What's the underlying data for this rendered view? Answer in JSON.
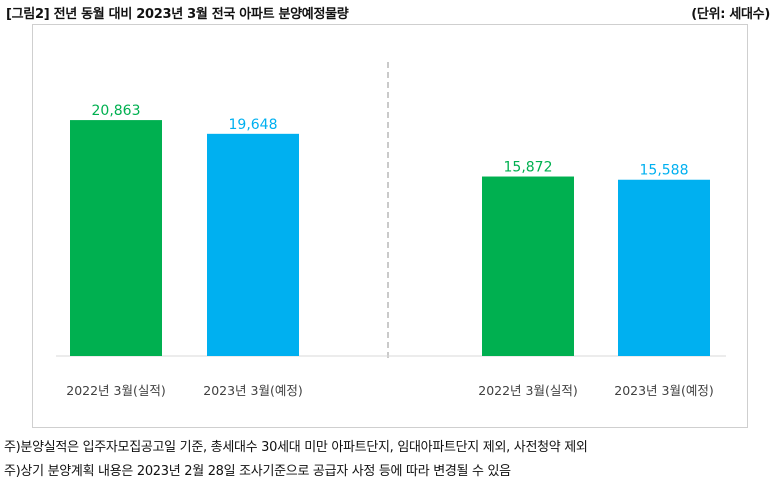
{
  "header": {
    "title": "[그림2] 전년 동월 대비 2023년 3월 전국 아파트 분양예정물량",
    "unit": "(단위: 세대수)"
  },
  "chart_data": {
    "type": "bar",
    "title": "[그림2] 전년 동월 대비 2023년 3월 전국 아파트 분양예정물량",
    "ylabel": "세대수",
    "ylim": [
      0,
      26000
    ],
    "groups": [
      {
        "categories": [
          "2022년 3월(실적)",
          "2023년 3월(예정)"
        ],
        "values": [
          20863,
          19648
        ],
        "labels": [
          "20,863",
          "19,648"
        ]
      },
      {
        "categories": [
          "2022년 3월(실적)",
          "2023년 3월(예정)"
        ],
        "values": [
          15872,
          15588
        ],
        "labels": [
          "15,872",
          "15,588"
        ]
      }
    ],
    "colors": [
      "#00b050",
      "#00b0f0"
    ]
  },
  "notes": [
    "주)분양실적은 입주자모집공고일 기준, 총세대수 30세대 미만 아파트단지, 임대아파트단지 제외, 사전청약 제외",
    "주)상기 분양계획 내용은 2023년 2월 28일 조사기준으로 공급자 사정 등에 따라 변경될 수 있음"
  ]
}
